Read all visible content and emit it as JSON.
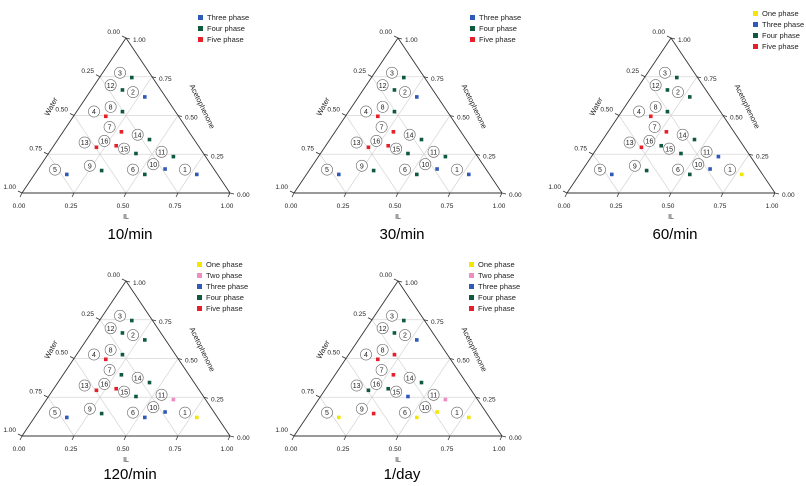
{
  "colors": {
    "One phase": "#f5e600",
    "Two phase": "#f08cc0",
    "Three phase": "#2f5ab8",
    "Four phase": "#0f5a3c",
    "Five phase": "#e6202a",
    "grid": "#d6d6d6",
    "axis": "#333333"
  },
  "chart_data": [
    {
      "type": "scatter",
      "subtype": "ternary",
      "title": "10/min",
      "axes": {
        "bottom": "IL",
        "right": "Acetophenone",
        "left": "Water"
      },
      "ticks": [
        "0.00",
        "0.25",
        "0.50",
        "0.75",
        "1.00"
      ],
      "legend": [
        "Three phase",
        "Four phase",
        "Five phase"
      ],
      "points": [
        {
          "label": "1",
          "il": 0.75,
          "acetophenone": 0.125,
          "water": 0.125,
          "phase": "Three phase"
        },
        {
          "label": "2",
          "il": 0.25,
          "acetophenone": 0.625,
          "water": 0.125,
          "phase": "Three phase"
        },
        {
          "label": "3",
          "il": 0.125,
          "acetophenone": 0.75,
          "water": 0.125,
          "phase": "Four phase"
        },
        {
          "label": "4",
          "il": 0.125,
          "acetophenone": 0.5,
          "water": 0.375,
          "phase": "Five phase"
        },
        {
          "label": "5",
          "il": 0.125,
          "acetophenone": 0.125,
          "water": 0.75,
          "phase": "Three phase"
        },
        {
          "label": "6",
          "il": 0.5,
          "acetophenone": 0.125,
          "water": 0.375,
          "phase": "Four phase"
        },
        {
          "label": "7",
          "il": 0.25,
          "acetophenone": 0.4,
          "water": 0.35,
          "phase": "Five phase"
        },
        {
          "label": "8",
          "il": 0.19,
          "acetophenone": 0.53,
          "water": 0.28,
          "phase": "Four phase"
        },
        {
          "label": "9",
          "il": 0.28,
          "acetophenone": 0.15,
          "water": 0.57,
          "phase": "Four phase"
        },
        {
          "label": "10",
          "il": 0.58,
          "acetophenone": 0.16,
          "water": 0.26,
          "phase": "Three phase"
        },
        {
          "label": "11",
          "il": 0.58,
          "acetophenone": 0.24,
          "water": 0.18,
          "phase": "Four phase"
        },
        {
          "label": "12",
          "il": 0.12,
          "acetophenone": 0.67,
          "water": 0.21,
          "phase": "Four phase"
        },
        {
          "label": "13",
          "il": 0.18,
          "acetophenone": 0.3,
          "water": 0.52,
          "phase": "Five phase"
        },
        {
          "label": "14",
          "il": 0.41,
          "acetophenone": 0.35,
          "water": 0.24,
          "phase": "Four phase"
        },
        {
          "label": "15",
          "il": 0.39,
          "acetophenone": 0.26,
          "water": 0.35,
          "phase": "Four phase"
        },
        {
          "label": "16",
          "il": 0.27,
          "acetophenone": 0.31,
          "water": 0.42,
          "phase": "Five phase"
        }
      ]
    },
    {
      "type": "scatter",
      "subtype": "ternary",
      "title": "30/min",
      "axes": {
        "bottom": "IL",
        "right": "Acetophenone",
        "left": "Water"
      },
      "ticks": [
        "0.00",
        "0.25",
        "0.50",
        "0.75",
        "1.00"
      ],
      "legend": [
        "Three phase",
        "Four phase",
        "Five phase"
      ],
      "points": [
        {
          "label": "1",
          "il": 0.75,
          "acetophenone": 0.125,
          "water": 0.125,
          "phase": "Three phase"
        },
        {
          "label": "2",
          "il": 0.25,
          "acetophenone": 0.625,
          "water": 0.125,
          "phase": "Three phase"
        },
        {
          "label": "3",
          "il": 0.125,
          "acetophenone": 0.75,
          "water": 0.125,
          "phase": "Four phase"
        },
        {
          "label": "4",
          "il": 0.125,
          "acetophenone": 0.5,
          "water": 0.375,
          "phase": "Five phase"
        },
        {
          "label": "5",
          "il": 0.125,
          "acetophenone": 0.125,
          "water": 0.75,
          "phase": "Three phase"
        },
        {
          "label": "6",
          "il": 0.5,
          "acetophenone": 0.125,
          "water": 0.375,
          "phase": "Four phase"
        },
        {
          "label": "7",
          "il": 0.25,
          "acetophenone": 0.4,
          "water": 0.35,
          "phase": "Five phase"
        },
        {
          "label": "8",
          "il": 0.19,
          "acetophenone": 0.53,
          "water": 0.28,
          "phase": "Four phase"
        },
        {
          "label": "9",
          "il": 0.28,
          "acetophenone": 0.15,
          "water": 0.57,
          "phase": "Four phase"
        },
        {
          "label": "10",
          "il": 0.58,
          "acetophenone": 0.16,
          "water": 0.26,
          "phase": "Three phase"
        },
        {
          "label": "11",
          "il": 0.58,
          "acetophenone": 0.24,
          "water": 0.18,
          "phase": "Four phase"
        },
        {
          "label": "12",
          "il": 0.12,
          "acetophenone": 0.67,
          "water": 0.21,
          "phase": "Four phase"
        },
        {
          "label": "13",
          "il": 0.18,
          "acetophenone": 0.3,
          "water": 0.52,
          "phase": "Five phase"
        },
        {
          "label": "14",
          "il": 0.41,
          "acetophenone": 0.35,
          "water": 0.24,
          "phase": "Four phase"
        },
        {
          "label": "15",
          "il": 0.39,
          "acetophenone": 0.26,
          "water": 0.35,
          "phase": "Four phase"
        },
        {
          "label": "16",
          "il": 0.27,
          "acetophenone": 0.31,
          "water": 0.42,
          "phase": "Five phase"
        }
      ]
    },
    {
      "type": "scatter",
      "subtype": "ternary",
      "title": "60/min",
      "axes": {
        "bottom": "IL",
        "right": "Acetophenone",
        "left": "Water"
      },
      "ticks": [
        "0.00",
        "0.25",
        "0.50",
        "0.75",
        "1.00"
      ],
      "legend": [
        "One phase",
        "Three phase",
        "Four phase",
        "Five phase"
      ],
      "points": [
        {
          "label": "1",
          "il": 0.75,
          "acetophenone": 0.125,
          "water": 0.125,
          "phase": "One phase"
        },
        {
          "label": "2",
          "il": 0.25,
          "acetophenone": 0.625,
          "water": 0.125,
          "phase": "Four phase"
        },
        {
          "label": "3",
          "il": 0.125,
          "acetophenone": 0.75,
          "water": 0.125,
          "phase": "Four phase"
        },
        {
          "label": "4",
          "il": 0.125,
          "acetophenone": 0.5,
          "water": 0.375,
          "phase": "Five phase"
        },
        {
          "label": "5",
          "il": 0.125,
          "acetophenone": 0.125,
          "water": 0.75,
          "phase": "Three phase"
        },
        {
          "label": "6",
          "il": 0.5,
          "acetophenone": 0.125,
          "water": 0.375,
          "phase": "Four phase"
        },
        {
          "label": "7",
          "il": 0.25,
          "acetophenone": 0.4,
          "water": 0.35,
          "phase": "Five phase"
        },
        {
          "label": "8",
          "il": 0.19,
          "acetophenone": 0.53,
          "water": 0.28,
          "phase": "Four phase"
        },
        {
          "label": "9",
          "il": 0.28,
          "acetophenone": 0.15,
          "water": 0.57,
          "phase": "Four phase"
        },
        {
          "label": "10",
          "il": 0.58,
          "acetophenone": 0.16,
          "water": 0.26,
          "phase": "Three phase"
        },
        {
          "label": "11",
          "il": 0.58,
          "acetophenone": 0.24,
          "water": 0.18,
          "phase": "Three phase"
        },
        {
          "label": "12",
          "il": 0.12,
          "acetophenone": 0.67,
          "water": 0.21,
          "phase": "Four phase"
        },
        {
          "label": "13",
          "il": 0.18,
          "acetophenone": 0.3,
          "water": 0.52,
          "phase": "Five phase"
        },
        {
          "label": "14",
          "il": 0.41,
          "acetophenone": 0.35,
          "water": 0.24,
          "phase": "Four phase"
        },
        {
          "label": "15",
          "il": 0.39,
          "acetophenone": 0.26,
          "water": 0.35,
          "phase": "Four phase"
        },
        {
          "label": "16",
          "il": 0.27,
          "acetophenone": 0.31,
          "water": 0.42,
          "phase": "Four phase"
        }
      ]
    },
    {
      "type": "scatter",
      "subtype": "ternary",
      "title": "120/min",
      "axes": {
        "bottom": "IL",
        "right": "Acetophenone",
        "left": "Water"
      },
      "ticks": [
        "0.00",
        "0.25",
        "0.50",
        "0.75",
        "1.00"
      ],
      "legend": [
        "One phase",
        "Two phase",
        "Three phase",
        "Four phase",
        "Five phase"
      ],
      "points": [
        {
          "label": "1",
          "il": 0.75,
          "acetophenone": 0.125,
          "water": 0.125,
          "phase": "One phase"
        },
        {
          "label": "2",
          "il": 0.25,
          "acetophenone": 0.625,
          "water": 0.125,
          "phase": "Four phase"
        },
        {
          "label": "3",
          "il": 0.125,
          "acetophenone": 0.75,
          "water": 0.125,
          "phase": "Four phase"
        },
        {
          "label": "4",
          "il": 0.125,
          "acetophenone": 0.5,
          "water": 0.375,
          "phase": "Five phase"
        },
        {
          "label": "5",
          "il": 0.125,
          "acetophenone": 0.125,
          "water": 0.75,
          "phase": "Three phase"
        },
        {
          "label": "6",
          "il": 0.5,
          "acetophenone": 0.125,
          "water": 0.375,
          "phase": "Three phase"
        },
        {
          "label": "7",
          "il": 0.25,
          "acetophenone": 0.4,
          "water": 0.35,
          "phase": "Four phase"
        },
        {
          "label": "8",
          "il": 0.19,
          "acetophenone": 0.53,
          "water": 0.28,
          "phase": "Four phase"
        },
        {
          "label": "9",
          "il": 0.28,
          "acetophenone": 0.15,
          "water": 0.57,
          "phase": "Four phase"
        },
        {
          "label": "10",
          "il": 0.58,
          "acetophenone": 0.16,
          "water": 0.26,
          "phase": "Three phase"
        },
        {
          "label": "11",
          "il": 0.58,
          "acetophenone": 0.24,
          "water": 0.18,
          "phase": "Two phase"
        },
        {
          "label": "12",
          "il": 0.12,
          "acetophenone": 0.67,
          "water": 0.21,
          "phase": "Four phase"
        },
        {
          "label": "13",
          "il": 0.18,
          "acetophenone": 0.3,
          "water": 0.52,
          "phase": "Five phase"
        },
        {
          "label": "14",
          "il": 0.41,
          "acetophenone": 0.35,
          "water": 0.24,
          "phase": "Four phase"
        },
        {
          "label": "15",
          "il": 0.39,
          "acetophenone": 0.26,
          "water": 0.35,
          "phase": "Four phase"
        },
        {
          "label": "16",
          "il": 0.27,
          "acetophenone": 0.31,
          "water": 0.42,
          "phase": "Five phase"
        }
      ]
    },
    {
      "type": "scatter",
      "subtype": "ternary",
      "title": "1/day",
      "axes": {
        "bottom": "IL",
        "right": "Acetophenone",
        "left": "Water"
      },
      "ticks": [
        "0.00",
        "0.25",
        "0.50",
        "0.75",
        "1.00"
      ],
      "legend": [
        "One phase",
        "Two phase",
        "Three phase",
        "Four phase",
        "Five phase"
      ],
      "points": [
        {
          "label": "1",
          "il": 0.75,
          "acetophenone": 0.125,
          "water": 0.125,
          "phase": "One phase"
        },
        {
          "label": "2",
          "il": 0.25,
          "acetophenone": 0.625,
          "water": 0.125,
          "phase": "Three phase"
        },
        {
          "label": "3",
          "il": 0.125,
          "acetophenone": 0.75,
          "water": 0.125,
          "phase": "Four phase"
        },
        {
          "label": "4",
          "il": 0.125,
          "acetophenone": 0.5,
          "water": 0.375,
          "phase": "Five phase"
        },
        {
          "label": "5",
          "il": 0.125,
          "acetophenone": 0.125,
          "water": 0.75,
          "phase": "One phase"
        },
        {
          "label": "6",
          "il": 0.5,
          "acetophenone": 0.125,
          "water": 0.375,
          "phase": "One phase"
        },
        {
          "label": "7",
          "il": 0.25,
          "acetophenone": 0.4,
          "water": 0.35,
          "phase": "Five phase"
        },
        {
          "label": "8",
          "il": 0.19,
          "acetophenone": 0.53,
          "water": 0.28,
          "phase": "Five phase"
        },
        {
          "label": "9",
          "il": 0.28,
          "acetophenone": 0.15,
          "water": 0.57,
          "phase": "Five phase"
        },
        {
          "label": "10",
          "il": 0.58,
          "acetophenone": 0.16,
          "water": 0.26,
          "phase": "One phase"
        },
        {
          "label": "11",
          "il": 0.58,
          "acetophenone": 0.24,
          "water": 0.18,
          "phase": "Two phase"
        },
        {
          "label": "12",
          "il": 0.12,
          "acetophenone": 0.67,
          "water": 0.21,
          "phase": "Four phase"
        },
        {
          "label": "13",
          "il": 0.18,
          "acetophenone": 0.3,
          "water": 0.52,
          "phase": "Four phase"
        },
        {
          "label": "14",
          "il": 0.41,
          "acetophenone": 0.35,
          "water": 0.24,
          "phase": "Four phase"
        },
        {
          "label": "15",
          "il": 0.39,
          "acetophenone": 0.26,
          "water": 0.35,
          "phase": "Three phase"
        },
        {
          "label": "16",
          "il": 0.27,
          "acetophenone": 0.31,
          "water": 0.42,
          "phase": "Four phase"
        }
      ]
    }
  ]
}
